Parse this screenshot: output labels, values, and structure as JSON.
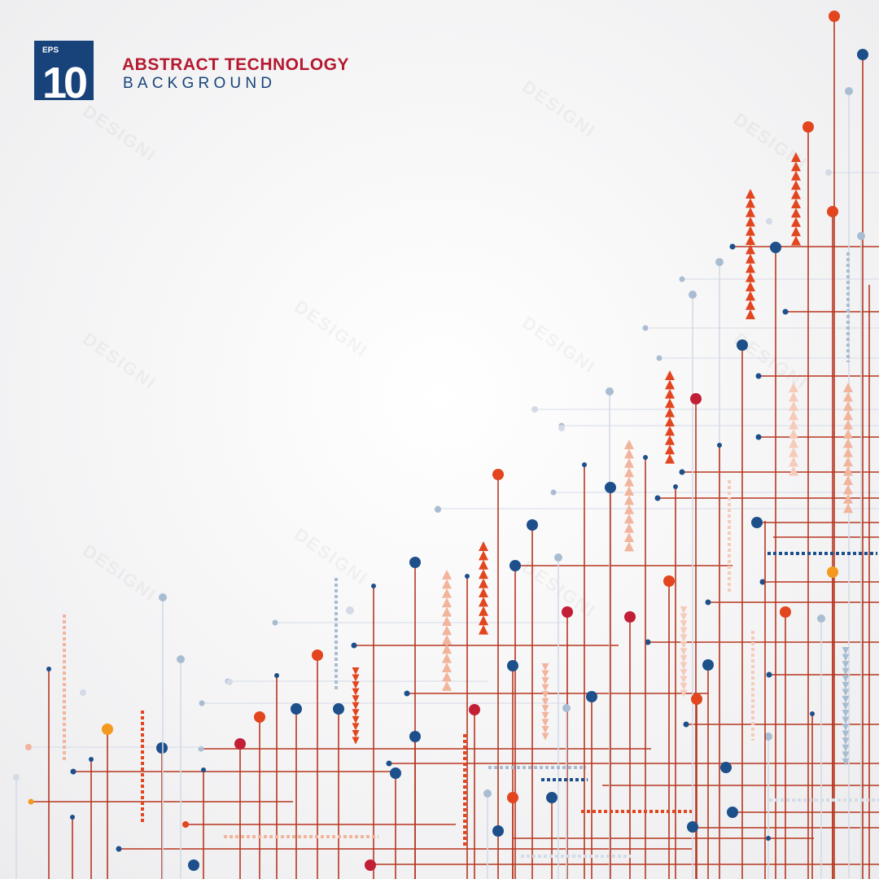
{
  "logo": {
    "format": "EPS",
    "version": "10"
  },
  "header": {
    "title": "ABSTRACT TECHNOLOGY",
    "subtitle": "BACKGROUND"
  },
  "watermark": "DESIGNI"
}
